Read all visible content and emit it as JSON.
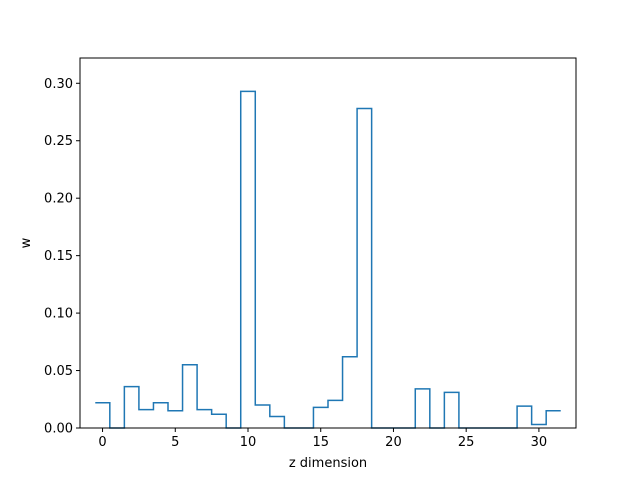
{
  "chart_data": {
    "type": "line",
    "style": "step",
    "title": "",
    "xlabel": "z dimension",
    "ylabel": "w",
    "xlim": [
      -1.55,
      32.55
    ],
    "ylim": [
      0,
      0.322
    ],
    "xticks": [
      0,
      5,
      10,
      15,
      20,
      25,
      30
    ],
    "yticks": [
      0.0,
      0.05,
      0.1,
      0.15,
      0.2,
      0.25,
      0.3
    ],
    "ytick_labels": [
      "0.00",
      "0.05",
      "0.10",
      "0.15",
      "0.20",
      "0.25",
      "0.30"
    ],
    "grid": false,
    "color": "#1f77b4",
    "series": [
      {
        "x": [
          0,
          1,
          2,
          3,
          4,
          5,
          6,
          7,
          8,
          9,
          10,
          11,
          12,
          13,
          14,
          15,
          16,
          17,
          18,
          19,
          20,
          21,
          22,
          23,
          24,
          25,
          26,
          27,
          28,
          29,
          30,
          31
        ],
        "values": [
          0.022,
          0.0,
          0.036,
          0.016,
          0.022,
          0.015,
          0.055,
          0.016,
          0.012,
          0.0,
          0.293,
          0.02,
          0.01,
          0.0,
          0.0,
          0.018,
          0.024,
          0.062,
          0.278,
          0.0,
          0.0,
          0.0,
          0.034,
          0.0,
          0.031,
          0.0,
          0.0,
          0.0,
          0.0,
          0.019,
          0.003,
          0.015
        ]
      }
    ]
  }
}
